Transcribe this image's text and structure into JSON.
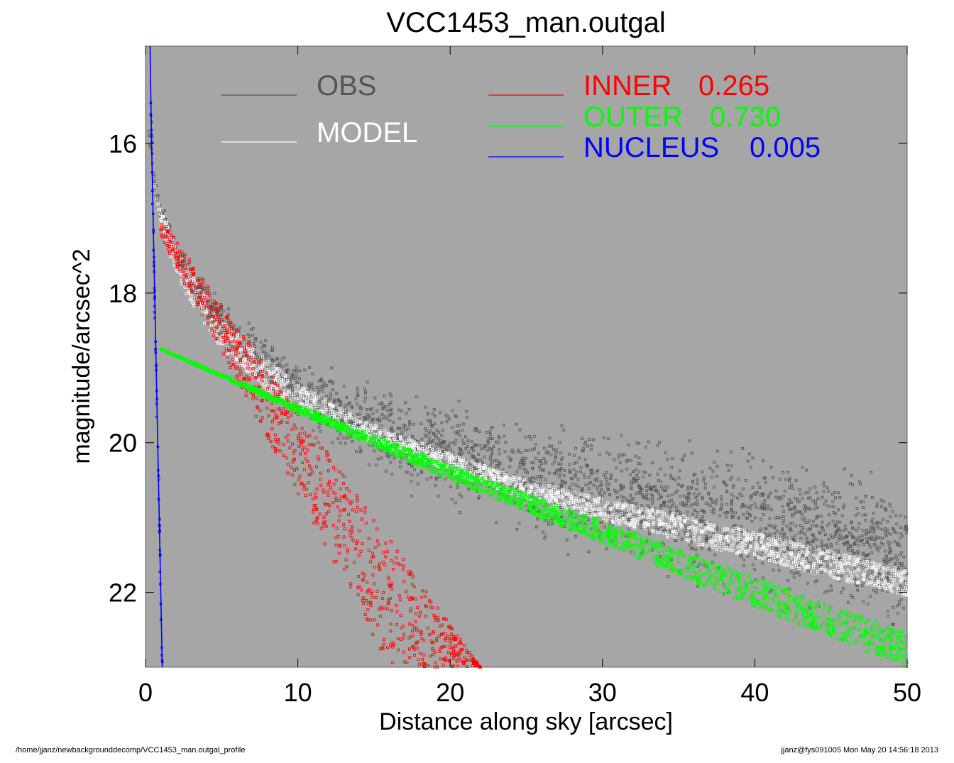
{
  "chart_data": {
    "type": "scatter",
    "title": "VCC1453_man.outgal",
    "xlabel": "Distance along sky [arcsec]",
    "ylabel": "magnitude/arcsec^2",
    "xlim": [
      0,
      50
    ],
    "ylim": [
      23,
      14.7
    ],
    "y_inverted": true,
    "xticks": [
      "0",
      "10",
      "20",
      "30",
      "40",
      "50"
    ],
    "xtick_values": [
      0,
      10,
      20,
      30,
      40,
      50
    ],
    "yticks": [
      "16",
      "18",
      "20",
      "22"
    ],
    "ytick_values": [
      16,
      18,
      20,
      22
    ],
    "grid": false,
    "background": "#a6a6a6",
    "legend_placement": "top",
    "legend": [
      {
        "id": "obs",
        "label": "OBS",
        "color": "#555555"
      },
      {
        "id": "model",
        "label": "MODEL",
        "color": "#ffffff"
      },
      {
        "id": "inner",
        "label": "INNER",
        "value": "0.265",
        "color": "#ff0000"
      },
      {
        "id": "outer",
        "label": "OUTER",
        "value": "0.730",
        "color": "#00ff00"
      },
      {
        "id": "nucleus",
        "label": "NUCLEUS",
        "value": "0.005",
        "color": "#0000ff"
      }
    ],
    "series": [
      {
        "name": "OBS",
        "color": "#555555",
        "marker": "open-square",
        "trend": {
          "x": [
            0.2,
            0.6,
            1,
            2,
            3,
            5,
            8,
            10,
            13,
            16,
            20,
            25,
            30,
            35,
            40,
            45,
            50
          ],
          "y": [
            15.8,
            16.6,
            16.9,
            17.4,
            17.85,
            18.4,
            18.95,
            19.25,
            19.6,
            19.9,
            20.15,
            20.45,
            20.65,
            20.85,
            21.05,
            21.3,
            21.55
          ]
        },
        "scatter_width": [
          0.1,
          0.1,
          0.1,
          0.15,
          0.2,
          0.25,
          0.3,
          0.35,
          0.4,
          0.45,
          0.55,
          0.6,
          0.7,
          0.7,
          0.75,
          0.8,
          0.8
        ]
      },
      {
        "name": "MODEL",
        "color": "#ffffff",
        "marker": "open-square",
        "band_lo": {
          "x": [
            0.6,
            1,
            2,
            3,
            5,
            8,
            10,
            13,
            16,
            20,
            25,
            30,
            35,
            40,
            45,
            50
          ],
          "y": [
            16.55,
            16.85,
            17.35,
            17.75,
            18.35,
            18.9,
            19.2,
            19.55,
            19.85,
            20.15,
            20.5,
            20.75,
            20.95,
            21.2,
            21.45,
            21.7
          ]
        },
        "band_hi": {
          "x": [
            0.6,
            1,
            2,
            3,
            5,
            8,
            10,
            13,
            16,
            20,
            25,
            30,
            35,
            40,
            45,
            50
          ],
          "y": [
            16.6,
            17.1,
            17.75,
            18.15,
            18.75,
            19.3,
            19.55,
            19.85,
            20.1,
            20.4,
            20.75,
            21.05,
            21.3,
            21.55,
            21.8,
            22.05
          ]
        }
      },
      {
        "name": "INNER",
        "color": "#ff0000",
        "marker": "open-square",
        "band_lo": {
          "x": [
            1,
            22
          ],
          "y": [
            17.0,
            23.0
          ]
        },
        "band_hi": {
          "x": [
            1,
            16
          ],
          "y": [
            17.25,
            23.0
          ]
        }
      },
      {
        "name": "OUTER",
        "color": "#00ff00",
        "marker": "open-square",
        "band_lo": {
          "x": [
            1,
            10,
            20,
            30,
            40,
            50
          ],
          "y": [
            18.75,
            19.5,
            20.3,
            21.05,
            21.8,
            22.55
          ]
        },
        "band_hi": {
          "x": [
            1,
            10,
            20,
            30,
            40,
            50
          ],
          "y": [
            18.75,
            19.6,
            20.5,
            21.35,
            22.2,
            23.0
          ]
        }
      },
      {
        "name": "NUCLEUS",
        "color": "#0000ff",
        "marker": "open-square",
        "points": {
          "x": [
            0.3,
            0.35,
            0.4,
            0.45,
            0.5,
            0.6,
            0.8,
            1.0,
            1.1
          ],
          "y": [
            14.7,
            15.4,
            16.0,
            16.5,
            17.0,
            18.0,
            20.0,
            22.0,
            23.0
          ]
        }
      }
    ]
  },
  "footer": {
    "left": "/home/jjanz/newbackgrounddecomp/VCC1453_man.outgal_profile",
    "right": "jjanz@fys091005  Mon May 20 14:56:18 2013"
  }
}
